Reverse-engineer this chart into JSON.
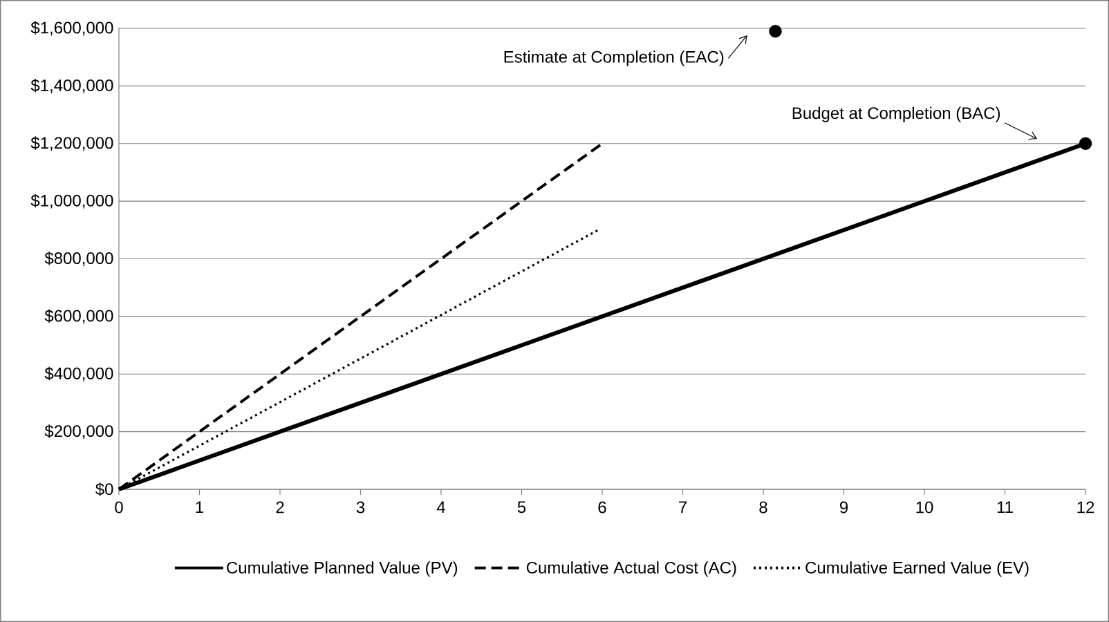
{
  "chart_data": {
    "type": "line",
    "xlim": [
      0,
      12
    ],
    "xticks": [
      0,
      1,
      2,
      3,
      4,
      5,
      6,
      7,
      8,
      9,
      10,
      11,
      12
    ],
    "ylim": [
      0,
      1600000
    ],
    "yticks": [
      {
        "value": 0,
        "label": "$0"
      },
      {
        "value": 200000,
        "label": "$200,000"
      },
      {
        "value": 400000,
        "label": "$400,000"
      },
      {
        "value": 600000,
        "label": "$600,000"
      },
      {
        "value": 800000,
        "label": "$800,000"
      },
      {
        "value": 1000000,
        "label": "$1,000,000"
      },
      {
        "value": 1200000,
        "label": "$1,200,000"
      },
      {
        "value": 1400000,
        "label": "$1,400,000"
      },
      {
        "value": 1600000,
        "label": "$1,600,000"
      }
    ],
    "grid": "y",
    "legend": "bottom",
    "series": [
      {
        "name": "Cumulative Planned Value (PV)",
        "line_style": "solid",
        "color": "#000000",
        "x": [
          0,
          12
        ],
        "values": [
          0,
          1200000
        ]
      },
      {
        "name": "Cumulative Actual Cost (AC)",
        "line_style": "dashed",
        "color": "#000000",
        "x": [
          0,
          6
        ],
        "values": [
          0,
          1200000
        ]
      },
      {
        "name": "Cumulative Earned Value (EV)",
        "line_style": "dotted",
        "color": "#000000",
        "x": [
          0,
          5.95
        ],
        "values": [
          0,
          900000
        ]
      },
      {
        "type": "scatter",
        "marker": "circle",
        "color": "#000000",
        "x": [
          8.15
        ],
        "values": [
          1590000
        ]
      },
      {
        "type": "scatter",
        "marker": "circle",
        "color": "#000000",
        "x": [
          12
        ],
        "values": [
          1200000
        ]
      }
    ],
    "annotations": [
      "Estimate at Completion (EAC)",
      "Budget at Completion (BAC)"
    ]
  }
}
